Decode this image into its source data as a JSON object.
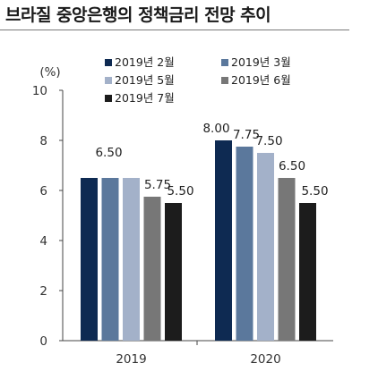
{
  "chart_data": {
    "type": "bar",
    "title": "브라질 중앙은행의 정책금리 전망 추이",
    "ylabel": "(%)",
    "xlabel": "",
    "categories": [
      "2019",
      "2020"
    ],
    "ylim": [
      0,
      10
    ],
    "yticks": [
      0,
      2,
      4,
      6,
      8,
      10
    ],
    "grid": false,
    "legend_position": "top-right",
    "series": [
      {
        "name": "2019년 2월",
        "color": "#0e2a52",
        "values": [
          6.5,
          8.0
        ],
        "labels": [
          "6.50",
          "8.00"
        ]
      },
      {
        "name": "2019년 3월",
        "color": "#5b789c",
        "values": [
          6.5,
          7.75
        ],
        "labels": [
          "",
          "7.75"
        ]
      },
      {
        "name": "2019년 5월",
        "color": "#a3b1c9",
        "values": [
          6.5,
          7.5
        ],
        "labels": [
          "",
          "7.50"
        ]
      },
      {
        "name": "2019년 6월",
        "color": "#777777",
        "values": [
          5.75,
          6.5
        ],
        "labels": [
          "5.75",
          "6.50"
        ]
      },
      {
        "name": "2019년 7월",
        "color": "#1c1c1c",
        "values": [
          5.5,
          5.5
        ],
        "labels": [
          "5.50",
          "5.50"
        ]
      }
    ]
  }
}
